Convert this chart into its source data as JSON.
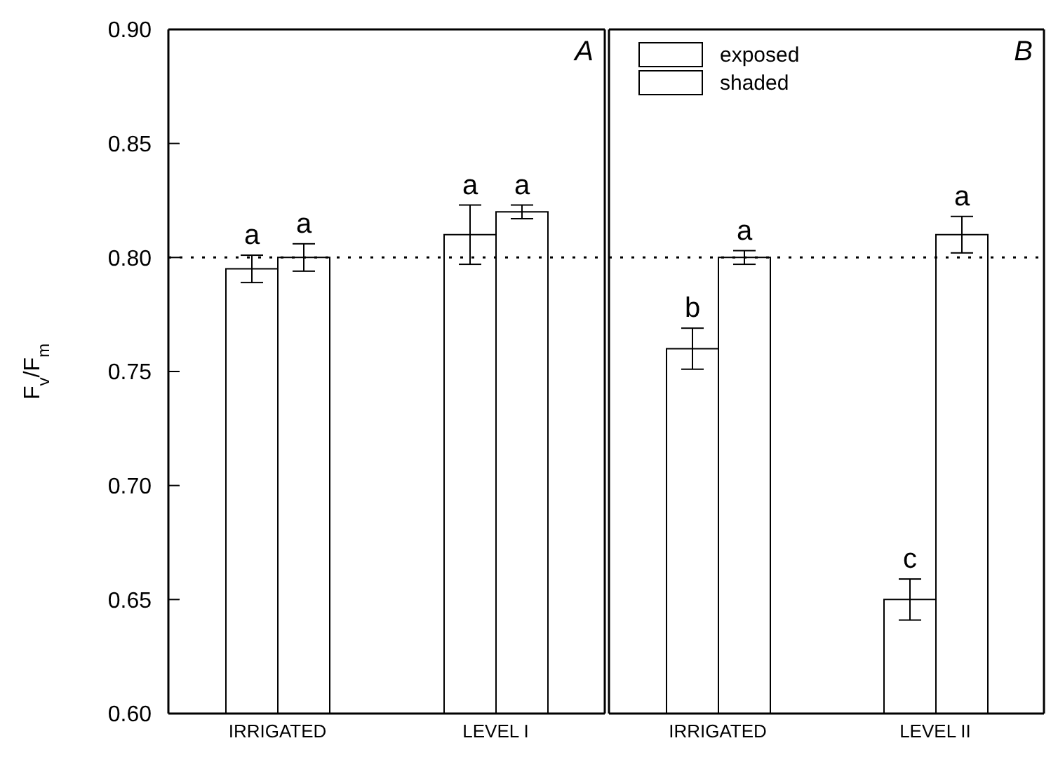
{
  "chart_data": [
    {
      "type": "bar",
      "ylabel": "F$_{v}$/F$_{m}$",
      "categories": [
        "IRRIGATED",
        "LEVEL  I"
      ],
      "series": [
        {
          "color": "#ffffff",
          "values": [
            0.795,
            0.81
          ],
          "errors": [
            0.006,
            0.013
          ]
        },
        {
          "color": "#ffffff",
          "values": [
            0.8,
            0.82
          ],
          "errors": [
            0.006,
            0.003
          ]
        }
      ],
      "ylim": [
        0.6,
        0.9
      ],
      "yticks": [
        {
          "value": 0.6,
          "label": "0.60"
        },
        {
          "value": 0.65,
          "label": "0.65"
        },
        {
          "value": 0.7,
          "label": "0.70"
        },
        {
          "value": 0.75,
          "label": "0.75"
        },
        {
          "value": 0.8,
          "label": "0.80"
        },
        {
          "value": 0.85,
          "label": "0.85"
        },
        {
          "value": 0.9,
          "label": "0.90"
        }
      ],
      "ref_lines": [
        {
          "axis": "y",
          "value": 0.8,
          "line_style": "dotted"
        }
      ],
      "grid": false,
      "legend": false,
      "annotations": [
        "A",
        "a",
        "a",
        "a",
        "a"
      ]
    },
    {
      "type": "bar",
      "categories": [
        "IRRIGATED",
        "LEVEL  II"
      ],
      "series": [
        {
          "name": "exposed",
          "color": "#ffffff",
          "values": [
            0.76,
            0.65
          ],
          "errors": [
            0.009,
            0.009
          ]
        },
        {
          "name": "shaded",
          "color": "#ffffff",
          "values": [
            0.8,
            0.81
          ],
          "errors": [
            0.003,
            0.008
          ]
        }
      ],
      "ylim": [
        0.6,
        0.9
      ],
      "tick_labels": "x",
      "ref_lines": [
        {
          "axis": "y",
          "value": 0.8,
          "line_style": "dotted"
        }
      ],
      "grid": false,
      "legend": "top left",
      "annotations": [
        "B",
        "b",
        "a",
        "c",
        "a"
      ]
    }
  ]
}
